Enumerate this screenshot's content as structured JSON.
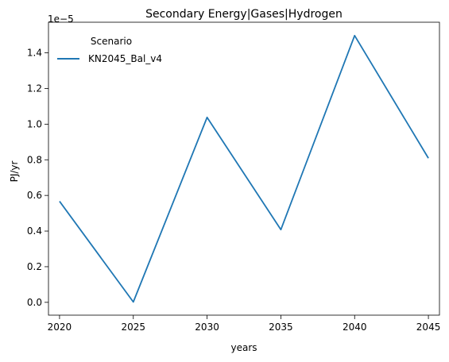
{
  "chart_data": {
    "type": "line",
    "title": "Secondary Energy|Gases|Hydrogen",
    "xlabel": "years",
    "ylabel": "PJ/yr",
    "offset_label": "1e−5",
    "x": [
      2020,
      2025,
      2030,
      2035,
      2040,
      2045
    ],
    "series": [
      {
        "name": "KN2045_Bal_v4",
        "color": "#1f77b4",
        "values": [
          0.567,
          0.002,
          1.038,
          0.408,
          1.497,
          0.809
        ]
      }
    ],
    "xlim": [
      2019.25,
      2045.75
    ],
    "ylim": [
      -0.072,
      1.572
    ],
    "xticks": [
      2020,
      2025,
      2030,
      2035,
      2040,
      2045
    ],
    "yticks": [
      0.0,
      0.2,
      0.4,
      0.6,
      0.8,
      1.0,
      1.2,
      1.4
    ],
    "ytick_labels": [
      "0.0",
      "0.2",
      "0.4",
      "0.6",
      "0.8",
      "1.0",
      "1.2",
      "1.4"
    ],
    "grid": false,
    "legend": {
      "title": "Scenario",
      "placement": "top-left"
    }
  }
}
